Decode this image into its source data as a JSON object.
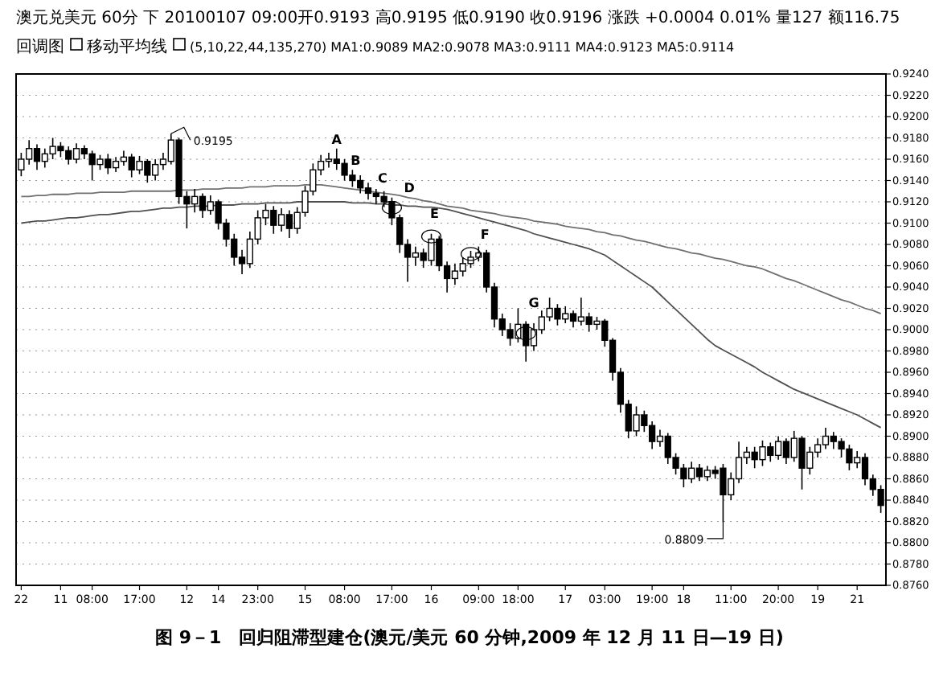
{
  "chart_data": {
    "type": "candlestick",
    "title": "图 9－1　回归阻滞型建仓(澳元/美元 60 分钟,2009 年 12 月 11 日—19 日)",
    "annotations": [
      "澳元兑美元 60分 下 20100107 09:00开0.9193 高0.9195 低0.9190 收0.9196 涨跌 +0.0004 0.01% 量127 额116.75",
      "回调图",
      "移动平均线",
      "(5,10,22,44,135,270) MA1:0.9089 MA2:0.9078 MA3:0.9111 MA4:0.9123 MA5:0.9114",
      "0.9195",
      "0.8809",
      "A",
      "B",
      "C",
      "D",
      "E",
      "F",
      "G"
    ],
    "categories": [
      "22",
      null,
      null,
      null,
      null,
      "11",
      null,
      null,
      null,
      "08:00",
      null,
      null,
      null,
      null,
      null,
      "17:00",
      null,
      null,
      null,
      null,
      null,
      "12",
      null,
      null,
      null,
      "14",
      null,
      null,
      null,
      null,
      "23:00",
      null,
      null,
      null,
      null,
      null,
      "15",
      null,
      null,
      null,
      null,
      "08:00",
      null,
      null,
      null,
      null,
      null,
      "17:00",
      null,
      null,
      null,
      null,
      "16",
      null,
      null,
      null,
      null,
      null,
      "09:00",
      null,
      null,
      null,
      null,
      "18:00",
      null,
      null,
      null,
      null,
      null,
      "17",
      null,
      null,
      null,
      null,
      "03:00",
      null,
      null,
      null,
      null,
      null,
      "19:00",
      null,
      null,
      null,
      "18",
      null,
      null,
      null,
      null,
      null,
      "11:00",
      null,
      null,
      null,
      null,
      null,
      "20:00",
      null,
      null,
      null,
      null,
      "19",
      null,
      null,
      null,
      null,
      "21",
      null,
      null,
      null
    ],
    "color": "#000000",
    "ohlc": [
      [
        0.915,
        0.9166,
        0.9144,
        0.916
      ],
      [
        0.916,
        0.9178,
        0.9155,
        0.917
      ],
      [
        0.917,
        0.9174,
        0.915,
        0.9158
      ],
      [
        0.9158,
        0.917,
        0.9152,
        0.9165
      ],
      [
        0.9165,
        0.918,
        0.916,
        0.9172
      ],
      [
        0.9172,
        0.9176,
        0.9162,
        0.9168
      ],
      [
        0.9168,
        0.9172,
        0.9155,
        0.916
      ],
      [
        0.916,
        0.9175,
        0.9156,
        0.917
      ],
      [
        0.917,
        0.9173,
        0.916,
        0.9165
      ],
      [
        0.9165,
        0.9168,
        0.914,
        0.9155
      ],
      [
        0.9155,
        0.9164,
        0.915,
        0.916
      ],
      [
        0.916,
        0.9165,
        0.9146,
        0.9152
      ],
      [
        0.9152,
        0.9162,
        0.9148,
        0.9158
      ],
      [
        0.9158,
        0.9168,
        0.9154,
        0.9162
      ],
      [
        0.9162,
        0.9165,
        0.9143,
        0.915
      ],
      [
        0.915,
        0.9163,
        0.9146,
        0.9158
      ],
      [
        0.9158,
        0.916,
        0.9138,
        0.9145
      ],
      [
        0.9145,
        0.916,
        0.914,
        0.9155
      ],
      [
        0.9155,
        0.9166,
        0.915,
        0.916
      ],
      [
        0.9158,
        0.9184,
        0.9155,
        0.9178
      ],
      [
        0.9178,
        0.918,
        0.9118,
        0.9125
      ],
      [
        0.9125,
        0.913,
        0.9095,
        0.9118
      ],
      [
        0.9118,
        0.9132,
        0.911,
        0.9125
      ],
      [
        0.9125,
        0.9128,
        0.9105,
        0.9112
      ],
      [
        0.9112,
        0.9126,
        0.9108,
        0.912
      ],
      [
        0.912,
        0.9122,
        0.9094,
        0.91
      ],
      [
        0.91,
        0.9104,
        0.9078,
        0.9085
      ],
      [
        0.9085,
        0.909,
        0.906,
        0.9068
      ],
      [
        0.9068,
        0.9075,
        0.9052,
        0.9062
      ],
      [
        0.9062,
        0.9092,
        0.9058,
        0.9085
      ],
      [
        0.9085,
        0.9112,
        0.908,
        0.9105
      ],
      [
        0.9105,
        0.9118,
        0.9098,
        0.9112
      ],
      [
        0.9112,
        0.9116,
        0.909,
        0.9098
      ],
      [
        0.9098,
        0.9114,
        0.9092,
        0.9108
      ],
      [
        0.9108,
        0.9112,
        0.9086,
        0.9095
      ],
      [
        0.9095,
        0.9115,
        0.909,
        0.911
      ],
      [
        0.911,
        0.9135,
        0.9106,
        0.913
      ],
      [
        0.913,
        0.9156,
        0.9126,
        0.915
      ],
      [
        0.915,
        0.9164,
        0.9145,
        0.9158
      ],
      [
        0.9158,
        0.9166,
        0.9152,
        0.916
      ],
      [
        0.916,
        0.917,
        0.915,
        0.9156
      ],
      [
        0.9156,
        0.916,
        0.914,
        0.9145
      ],
      [
        0.9145,
        0.915,
        0.9134,
        0.914
      ],
      [
        0.914,
        0.9145,
        0.9128,
        0.9133
      ],
      [
        0.9133,
        0.9138,
        0.9122,
        0.9128
      ],
      [
        0.9128,
        0.9132,
        0.9118,
        0.9125
      ],
      [
        0.9125,
        0.913,
        0.9115,
        0.912
      ],
      [
        0.912,
        0.9124,
        0.9098,
        0.9105
      ],
      [
        0.9105,
        0.9108,
        0.9072,
        0.908
      ],
      [
        0.908,
        0.9085,
        0.9045,
        0.9068
      ],
      [
        0.9068,
        0.9078,
        0.906,
        0.9072
      ],
      [
        0.9072,
        0.9076,
        0.9058,
        0.9065
      ],
      [
        0.9065,
        0.909,
        0.906,
        0.9085
      ],
      [
        0.9085,
        0.9088,
        0.9055,
        0.906
      ],
      [
        0.906,
        0.9064,
        0.9035,
        0.9048
      ],
      [
        0.9048,
        0.9062,
        0.9042,
        0.9055
      ],
      [
        0.9055,
        0.9068,
        0.905,
        0.9062
      ],
      [
        0.9062,
        0.9074,
        0.9058,
        0.9068
      ],
      [
        0.9068,
        0.9078,
        0.9064,
        0.9072
      ],
      [
        0.9072,
        0.9075,
        0.9035,
        0.904
      ],
      [
        0.904,
        0.9044,
        0.9002,
        0.901
      ],
      [
        0.901,
        0.9015,
        0.8994,
        0.9
      ],
      [
        0.9,
        0.9006,
        0.8985,
        0.8992
      ],
      [
        0.8992,
        0.902,
        0.8988,
        0.9005
      ],
      [
        0.9005,
        0.9008,
        0.897,
        0.8985
      ],
      [
        0.8985,
        0.9006,
        0.898,
        0.9
      ],
      [
        0.9,
        0.9018,
        0.8996,
        0.9012
      ],
      [
        0.9012,
        0.903,
        0.9008,
        0.902
      ],
      [
        0.902,
        0.9024,
        0.9004,
        0.901
      ],
      [
        0.901,
        0.9022,
        0.9006,
        0.9015
      ],
      [
        0.9015,
        0.9018,
        0.9002,
        0.9008
      ],
      [
        0.9008,
        0.903,
        0.9004,
        0.9012
      ],
      [
        0.9012,
        0.9016,
        0.8998,
        0.9005
      ],
      [
        0.9005,
        0.9012,
        0.9,
        0.9008
      ],
      [
        0.9008,
        0.901,
        0.8984,
        0.899
      ],
      [
        0.899,
        0.8992,
        0.8952,
        0.896
      ],
      [
        0.896,
        0.8964,
        0.8922,
        0.893
      ],
      [
        0.893,
        0.8934,
        0.8898,
        0.8905
      ],
      [
        0.8905,
        0.8928,
        0.89,
        0.892
      ],
      [
        0.892,
        0.8924,
        0.8904,
        0.891
      ],
      [
        0.891,
        0.8914,
        0.8888,
        0.8895
      ],
      [
        0.8895,
        0.8906,
        0.889,
        0.89
      ],
      [
        0.89,
        0.8903,
        0.8874,
        0.888
      ],
      [
        0.888,
        0.8884,
        0.8864,
        0.887
      ],
      [
        0.887,
        0.8874,
        0.8852,
        0.886
      ],
      [
        0.886,
        0.8876,
        0.8856,
        0.887
      ],
      [
        0.887,
        0.8874,
        0.8858,
        0.8862
      ],
      [
        0.8862,
        0.8872,
        0.8858,
        0.8868
      ],
      [
        0.8868,
        0.8872,
        0.886,
        0.8865
      ],
      [
        0.887,
        0.8874,
        0.8819,
        0.8845
      ],
      [
        0.8845,
        0.8866,
        0.884,
        0.886
      ],
      [
        0.886,
        0.8895,
        0.8856,
        0.888
      ],
      [
        0.888,
        0.889,
        0.8874,
        0.8885
      ],
      [
        0.8885,
        0.889,
        0.887,
        0.8878
      ],
      [
        0.8878,
        0.8896,
        0.8872,
        0.889
      ],
      [
        0.889,
        0.8894,
        0.8876,
        0.8882
      ],
      [
        0.8882,
        0.89,
        0.8878,
        0.8895
      ],
      [
        0.8895,
        0.8898,
        0.8874,
        0.888
      ],
      [
        0.888,
        0.8905,
        0.8876,
        0.8898
      ],
      [
        0.8898,
        0.89,
        0.885,
        0.887
      ],
      [
        0.887,
        0.889,
        0.8864,
        0.8885
      ],
      [
        0.8885,
        0.8898,
        0.888,
        0.8892
      ],
      [
        0.8892,
        0.8908,
        0.8888,
        0.89
      ],
      [
        0.89,
        0.8904,
        0.8888,
        0.8895
      ],
      [
        0.8895,
        0.8898,
        0.888,
        0.8888
      ],
      [
        0.8888,
        0.8892,
        0.8868,
        0.8875
      ],
      [
        0.8875,
        0.8886,
        0.887,
        0.888
      ],
      [
        0.888,
        0.8884,
        0.8854,
        0.886
      ],
      [
        0.886,
        0.8864,
        0.8844,
        0.885
      ],
      [
        0.885,
        0.8854,
        0.8828,
        0.8835
      ]
    ],
    "series": [
      {
        "type": "line",
        "color": "#707070",
        "values": [
          0.9125,
          0.9125,
          0.9126,
          0.9126,
          0.9127,
          0.9127,
          0.9127,
          0.9128,
          0.9128,
          0.9128,
          0.9129,
          0.9129,
          0.9129,
          0.9129,
          0.913,
          0.913,
          0.913,
          0.913,
          0.913,
          0.913,
          0.9131,
          0.9131,
          0.9131,
          0.9132,
          0.9132,
          0.9132,
          0.9133,
          0.9133,
          0.9133,
          0.9134,
          0.9134,
          0.9134,
          0.9135,
          0.9135,
          0.9135,
          0.9135,
          0.9136,
          0.9136,
          0.9136,
          0.9135,
          0.9134,
          0.9133,
          0.9132,
          0.9131,
          0.913,
          0.9129,
          0.9128,
          0.9127,
          0.9126,
          0.9124,
          0.9123,
          0.9121,
          0.912,
          0.9118,
          0.9116,
          0.9115,
          0.9114,
          0.9112,
          0.9111,
          0.911,
          0.9109,
          0.9107,
          0.9106,
          0.9105,
          0.9104,
          0.9102,
          0.9101,
          0.91,
          0.9099,
          0.9097,
          0.9096,
          0.9095,
          0.9094,
          0.9092,
          0.9091,
          0.9089,
          0.9088,
          0.9086,
          0.9084,
          0.9083,
          0.9081,
          0.9079,
          0.9077,
          0.9076,
          0.9074,
          0.9072,
          0.9071,
          0.9069,
          0.9067,
          0.9066,
          0.9064,
          0.9062,
          0.906,
          0.9059,
          0.9057,
          0.9054,
          0.9051,
          0.9048,
          0.9046,
          0.9043,
          0.904,
          0.9037,
          0.9034,
          0.9031,
          0.9028,
          0.9026,
          0.9023,
          0.902,
          0.9018,
          0.9015
        ]
      },
      {
        "type": "line",
        "color": "#505050",
        "values": [
          0.91,
          0.9101,
          0.9102,
          0.9102,
          0.9103,
          0.9104,
          0.9105,
          0.9105,
          0.9106,
          0.9107,
          0.9108,
          0.9108,
          0.9109,
          0.911,
          0.9111,
          0.9111,
          0.9112,
          0.9113,
          0.9114,
          0.9114,
          0.9115,
          0.9115,
          0.9116,
          0.9116,
          0.9116,
          0.9117,
          0.9117,
          0.9117,
          0.9118,
          0.9118,
          0.9118,
          0.9119,
          0.9119,
          0.9119,
          0.9119,
          0.912,
          0.912,
          0.912,
          0.912,
          0.912,
          0.912,
          0.912,
          0.9119,
          0.9119,
          0.9119,
          0.9118,
          0.9118,
          0.9117,
          0.9117,
          0.9116,
          0.9116,
          0.9115,
          0.9115,
          0.9114,
          0.9113,
          0.9111,
          0.9109,
          0.9107,
          0.9105,
          0.9103,
          0.9101,
          0.9099,
          0.9097,
          0.9095,
          0.9093,
          0.909,
          0.9088,
          0.9086,
          0.9084,
          0.9082,
          0.908,
          0.9078,
          0.9076,
          0.9073,
          0.907,
          0.9065,
          0.906,
          0.9055,
          0.905,
          0.9045,
          0.904,
          0.9033,
          0.9026,
          0.9019,
          0.9012,
          0.9005,
          0.8998,
          0.8991,
          0.8985,
          0.8981,
          0.8977,
          0.8973,
          0.8969,
          0.8965,
          0.896,
          0.8956,
          0.8952,
          0.8948,
          0.8944,
          0.8941,
          0.8938,
          0.8935,
          0.8932,
          0.8929,
          0.8926,
          0.8923,
          0.892,
          0.8916,
          0.8912,
          0.8908
        ]
      }
    ],
    "ylim": [
      0.876,
      0.924
    ],
    "yticks": [
      {
        "value": 0.924,
        "label": "0.9240"
      },
      {
        "value": 0.922,
        "label": "0.9220"
      },
      {
        "value": 0.92,
        "label": "0.9200"
      },
      {
        "value": 0.918,
        "label": "0.9180"
      },
      {
        "value": 0.916,
        "label": "0.9160"
      },
      {
        "value": 0.914,
        "label": "0.9140"
      },
      {
        "value": 0.912,
        "label": "0.9120"
      },
      {
        "value": 0.91,
        "label": "0.9100"
      },
      {
        "value": 0.908,
        "label": "0.9080"
      },
      {
        "value": 0.906,
        "label": "0.9060"
      },
      {
        "value": 0.904,
        "label": "0.9040"
      },
      {
        "value": 0.902,
        "label": "0.9020"
      },
      {
        "value": 0.9,
        "label": "0.9000"
      },
      {
        "value": 0.898,
        "label": "0.8980"
      },
      {
        "value": 0.896,
        "label": "0.8960"
      },
      {
        "value": 0.894,
        "label": "0.8940"
      },
      {
        "value": 0.892,
        "label": "0.8920"
      },
      {
        "value": 0.89,
        "label": "0.8900"
      },
      {
        "value": 0.888,
        "label": "0.8880"
      },
      {
        "value": 0.886,
        "label": "0.8860"
      },
      {
        "value": 0.884,
        "label": "0.8840"
      },
      {
        "value": 0.882,
        "label": "0.8820"
      },
      {
        "value": 0.88,
        "label": "0.8800"
      },
      {
        "value": 0.878,
        "label": "0.8780"
      },
      {
        "value": 0.876,
        "label": "0.8760"
      }
    ],
    "grid": "y"
  }
}
